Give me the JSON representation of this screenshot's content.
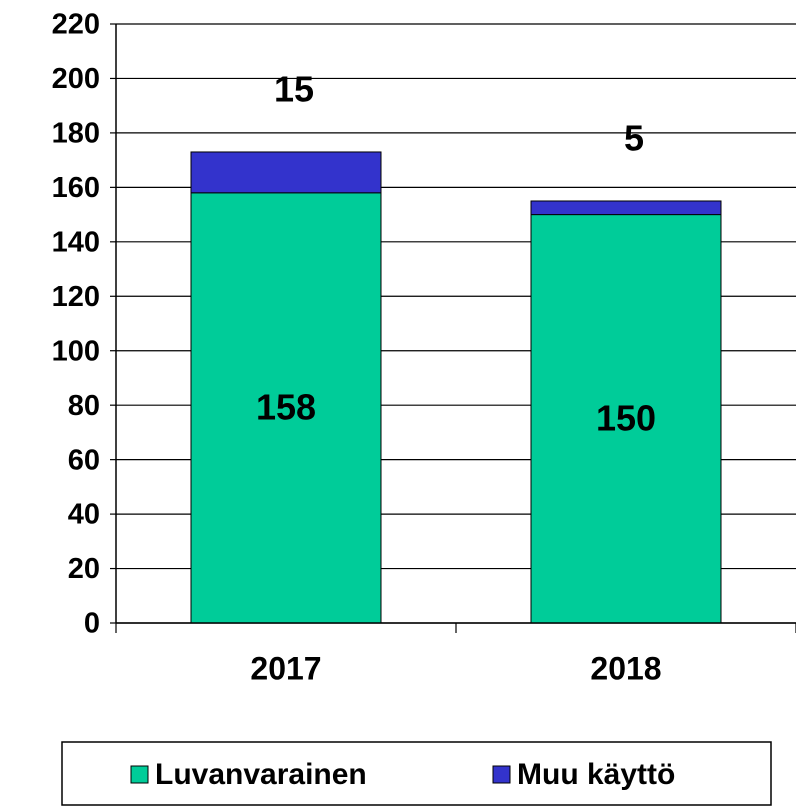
{
  "chart_data": {
    "type": "stacked_bar",
    "categories": [
      "2017",
      "2018"
    ],
    "series": [
      {
        "name": "Luvanvarainen",
        "color": "#00cc99",
        "values": [
          158,
          150
        ]
      },
      {
        "name": "Muu käyttö",
        "color": "#3333cc",
        "values": [
          15,
          5
        ]
      }
    ],
    "ylim": [
      0,
      220
    ],
    "yticks": [
      0,
      20,
      40,
      60,
      80,
      100,
      120,
      140,
      160,
      180,
      200,
      220
    ],
    "grid": true,
    "legend": "bottom"
  }
}
